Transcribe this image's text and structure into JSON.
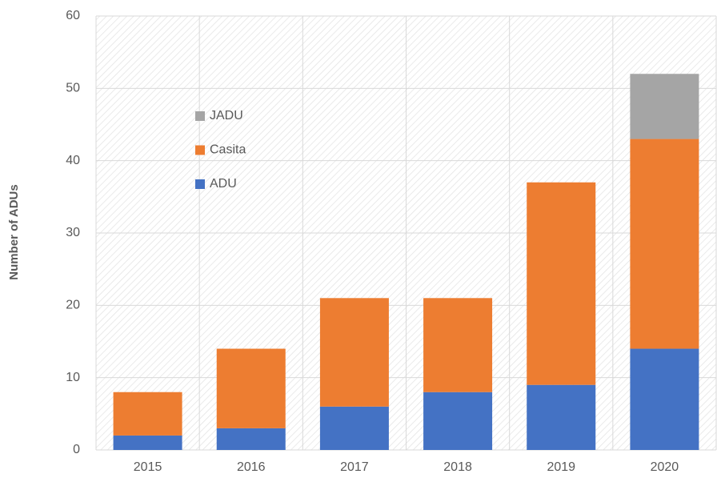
{
  "chart_data": {
    "type": "stacked_bar",
    "y_label": "Number of ADUs",
    "categories": [
      "2015",
      "2016",
      "2017",
      "2018",
      "2019",
      "2020"
    ],
    "series": [
      {
        "name": "ADU",
        "color": "#4472c4",
        "values": [
          2,
          3,
          6,
          8,
          9,
          14
        ]
      },
      {
        "name": "Casita",
        "color": "#ed7d31",
        "values": [
          6,
          11,
          15,
          13,
          28,
          29
        ]
      },
      {
        "name": "JADU",
        "color": "#a5a5a5",
        "values": [
          0,
          0,
          0,
          0,
          0,
          9
        ]
      }
    ],
    "ylim": [
      0,
      60
    ],
    "yticks": [
      0,
      10,
      20,
      30,
      40,
      50,
      60
    ],
    "grid": true,
    "legend": "upper left"
  }
}
